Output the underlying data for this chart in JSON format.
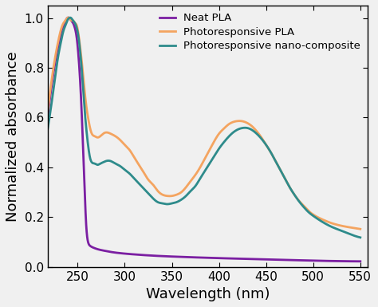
{
  "title": "",
  "xlabel": "Wavelength (nm)",
  "ylabel": "Normalized absorbance",
  "xlim": [
    218,
    558
  ],
  "ylim": [
    0.0,
    1.05
  ],
  "xticks": [
    250,
    300,
    350,
    400,
    450,
    500,
    550
  ],
  "yticks": [
    0.0,
    0.2,
    0.4,
    0.6,
    0.8,
    1.0
  ],
  "legend": [
    "Neat PLA",
    "Photoresponsive PLA",
    "Photoresponsive nano-composite"
  ],
  "colors": {
    "neat_pla": "#7B1FA2",
    "photo_pla": "#F4A460",
    "nano_composite": "#2E8B8B"
  },
  "linewidth": 2.0,
  "neat_pla_x": [
    218,
    222,
    226,
    230,
    233,
    236,
    239,
    241,
    243,
    245,
    247,
    249,
    251,
    253,
    255,
    257,
    259,
    261,
    263,
    265,
    268,
    272,
    278,
    285,
    295,
    310,
    330,
    360,
    400,
    450,
    500,
    550
  ],
  "neat_pla_y": [
    0.6,
    0.72,
    0.82,
    0.9,
    0.95,
    0.98,
    1.0,
    1.0,
    0.99,
    0.98,
    0.96,
    0.92,
    0.84,
    0.72,
    0.55,
    0.35,
    0.17,
    0.1,
    0.085,
    0.08,
    0.075,
    0.07,
    0.065,
    0.06,
    0.055,
    0.05,
    0.045,
    0.04,
    0.035,
    0.03,
    0.025,
    0.022
  ],
  "photo_pla_x": [
    218,
    222,
    226,
    229,
    232,
    235,
    237,
    239,
    241,
    243,
    245,
    247,
    249,
    251,
    253,
    255,
    257,
    259,
    261,
    263,
    265,
    268,
    271,
    274,
    277,
    280,
    285,
    290,
    295,
    300,
    305,
    310,
    315,
    320,
    325,
    330,
    335,
    340,
    345,
    350,
    355,
    360,
    365,
    370,
    375,
    380,
    385,
    390,
    395,
    400,
    405,
    410,
    415,
    420,
    425,
    430,
    435,
    440,
    445,
    450,
    455,
    460,
    465,
    470,
    475,
    480,
    485,
    490,
    495,
    500,
    510,
    520,
    530,
    540,
    550
  ],
  "photo_pla_y": [
    0.62,
    0.74,
    0.84,
    0.9,
    0.95,
    0.98,
    0.99,
    1.0,
    1.0,
    0.99,
    0.99,
    0.98,
    0.97,
    0.93,
    0.87,
    0.8,
    0.72,
    0.65,
    0.6,
    0.56,
    0.535,
    0.525,
    0.52,
    0.525,
    0.535,
    0.54,
    0.535,
    0.525,
    0.51,
    0.49,
    0.47,
    0.44,
    0.41,
    0.38,
    0.35,
    0.33,
    0.305,
    0.29,
    0.285,
    0.285,
    0.29,
    0.3,
    0.32,
    0.345,
    0.37,
    0.4,
    0.435,
    0.47,
    0.505,
    0.535,
    0.555,
    0.572,
    0.582,
    0.586,
    0.585,
    0.578,
    0.565,
    0.545,
    0.52,
    0.49,
    0.46,
    0.425,
    0.39,
    0.355,
    0.32,
    0.29,
    0.265,
    0.245,
    0.225,
    0.21,
    0.19,
    0.175,
    0.165,
    0.158,
    0.152
  ],
  "nano_x": [
    218,
    222,
    226,
    229,
    232,
    235,
    237,
    239,
    241,
    243,
    245,
    247,
    249,
    251,
    253,
    255,
    257,
    259,
    261,
    263,
    265,
    268,
    271,
    274,
    277,
    280,
    285,
    290,
    295,
    300,
    305,
    310,
    315,
    320,
    325,
    330,
    335,
    340,
    345,
    350,
    355,
    360,
    365,
    370,
    375,
    380,
    385,
    390,
    395,
    400,
    405,
    410,
    415,
    420,
    425,
    430,
    435,
    440,
    445,
    450,
    455,
    460,
    465,
    470,
    475,
    480,
    485,
    490,
    495,
    500,
    510,
    520,
    530,
    540,
    550
  ],
  "nano_y": [
    0.55,
    0.65,
    0.76,
    0.84,
    0.9,
    0.95,
    0.97,
    0.99,
    1.0,
    1.0,
    0.99,
    0.98,
    0.96,
    0.92,
    0.85,
    0.76,
    0.65,
    0.56,
    0.49,
    0.44,
    0.42,
    0.415,
    0.41,
    0.415,
    0.42,
    0.425,
    0.425,
    0.415,
    0.405,
    0.39,
    0.375,
    0.355,
    0.335,
    0.315,
    0.295,
    0.275,
    0.26,
    0.255,
    0.252,
    0.255,
    0.26,
    0.27,
    0.285,
    0.305,
    0.325,
    0.355,
    0.385,
    0.415,
    0.445,
    0.475,
    0.5,
    0.522,
    0.54,
    0.552,
    0.558,
    0.558,
    0.55,
    0.535,
    0.515,
    0.49,
    0.46,
    0.425,
    0.39,
    0.355,
    0.32,
    0.29,
    0.263,
    0.24,
    0.22,
    0.205,
    0.18,
    0.16,
    0.145,
    0.13,
    0.118
  ],
  "background_color": "#f0f0f0",
  "tick_fontsize": 11,
  "label_fontsize": 13,
  "legend_fontsize": 9.5
}
